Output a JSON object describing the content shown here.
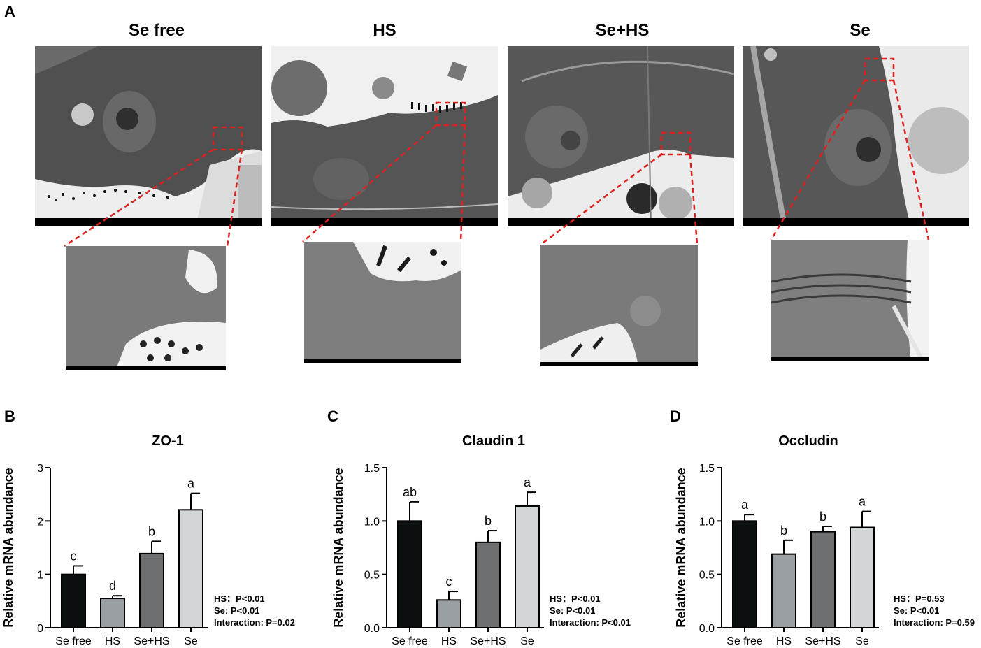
{
  "panel_letters": [
    "A",
    "B",
    "C",
    "D"
  ],
  "tem_titles": [
    "Se free",
    "HS",
    "Se+HS",
    "Se"
  ],
  "chart_data": [
    {
      "type": "bar",
      "title": "ZO-1",
      "ylabel": "Relative mRNA abundance",
      "xlabel": "",
      "categories": [
        "Se free",
        "HS",
        "Se+HS",
        "Se"
      ],
      "values": [
        1.0,
        0.55,
        1.39,
        2.21
      ],
      "errors": [
        0.16,
        0.05,
        0.23,
        0.31
      ],
      "letters": [
        "c",
        "d",
        "b",
        "a"
      ],
      "ylim": [
        0,
        3
      ],
      "yticks": [
        "0",
        "1",
        "2",
        "3"
      ],
      "bar_colors": [
        "#0b0f0f",
        "#9a9fa3",
        "#6d6f70",
        "#d3d6d6"
      ],
      "stats": [
        "HS：P<0.01",
        "Se: P<0.01",
        "Interaction: P=0.02"
      ]
    },
    {
      "type": "bar",
      "title": "Claudin 1",
      "ylabel": "Relative mRNA abundance",
      "xlabel": "",
      "categories": [
        "Se free",
        "HS",
        "Se+HS",
        "Se"
      ],
      "values": [
        1.0,
        0.26,
        0.8,
        1.14
      ],
      "errors": [
        0.18,
        0.08,
        0.11,
        0.13
      ],
      "letters": [
        "ab",
        "c",
        "b",
        "a"
      ],
      "ylim": [
        0,
        1.5
      ],
      "yticks": [
        "0.0",
        "0.5",
        "1.0",
        "1.5"
      ],
      "bar_colors": [
        "#0b0f0f",
        "#9a9fa3",
        "#6d6f70",
        "#d3d6d6"
      ],
      "stats": [
        "HS：P<0.01",
        "Se: P<0.01",
        "Interaction: P<0.01"
      ]
    },
    {
      "type": "bar",
      "title": "Occludin",
      "ylabel": "Relative mRNA abundance",
      "xlabel": "",
      "categories": [
        "Se free",
        "HS",
        "Se+HS",
        "Se"
      ],
      "values": [
        1.0,
        0.69,
        0.9,
        0.94
      ],
      "errors": [
        0.06,
        0.13,
        0.05,
        0.15
      ],
      "letters": [
        "a",
        "b",
        "b",
        "a"
      ],
      "ylim": [
        0,
        1.5
      ],
      "yticks": [
        "0.0",
        "0.5",
        "1.0",
        "1.5"
      ],
      "bar_colors": [
        "#0b0f0f",
        "#9a9fa3",
        "#6d6f70",
        "#d3d6d6"
      ],
      "stats": [
        "HS：P=0.53",
        "Se: P<0.01",
        "Interaction: P=0.59"
      ]
    }
  ]
}
